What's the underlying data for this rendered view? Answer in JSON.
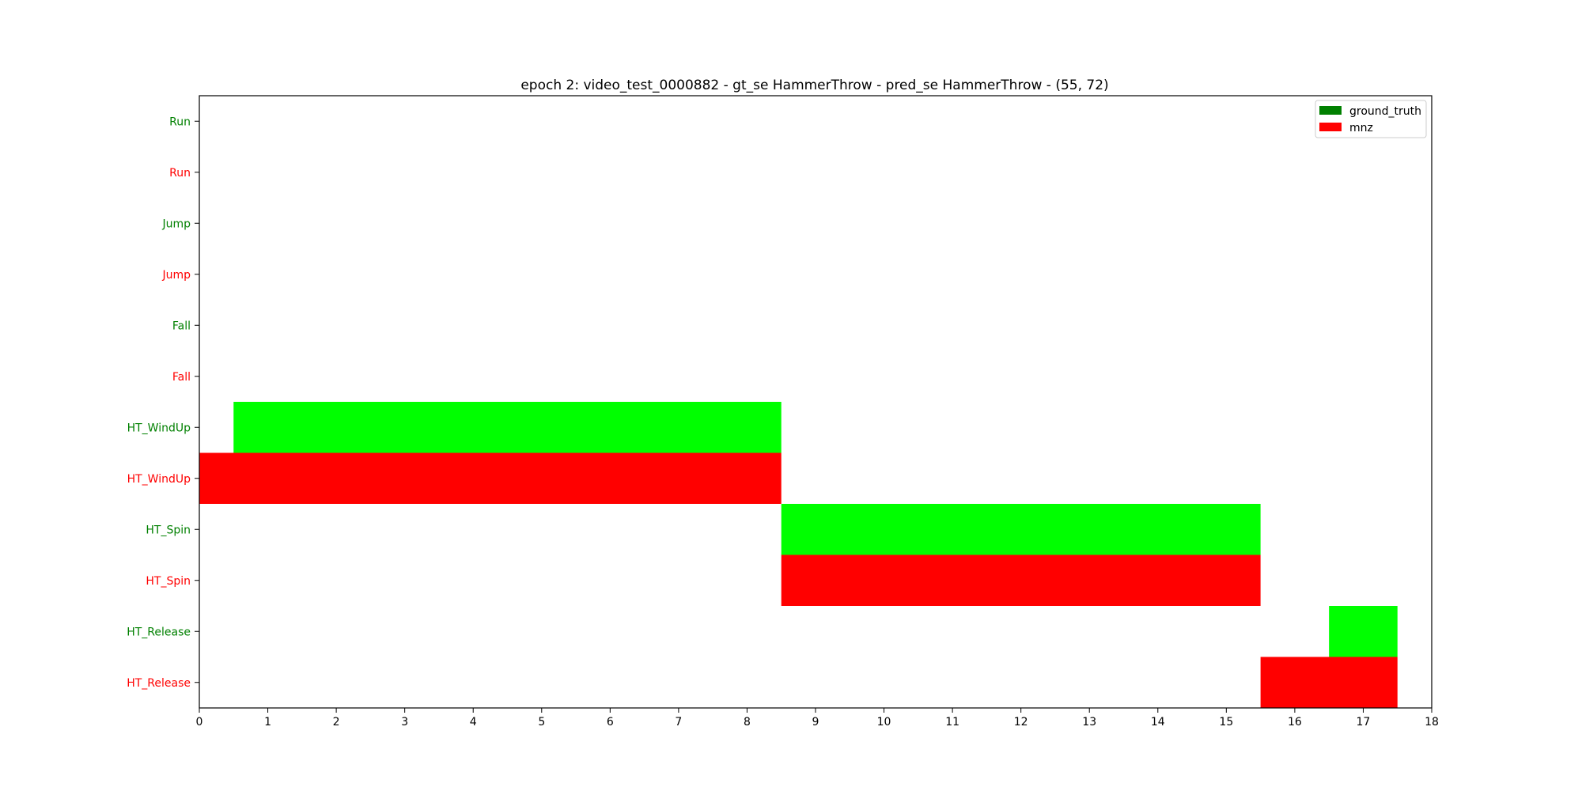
{
  "chart_data": {
    "type": "bar",
    "title": "epoch 2: video_test_0000882 - gt_se HammerThrow - pred_se HammerThrow - (55, 72)",
    "xlabel": "",
    "ylabel": "",
    "xlim": [
      0,
      18
    ],
    "xticks": [
      "0",
      "1",
      "2",
      "3",
      "4",
      "5",
      "6",
      "7",
      "8",
      "9",
      "10",
      "11",
      "12",
      "13",
      "14",
      "15",
      "16",
      "17",
      "18"
    ],
    "grid": false,
    "legend_position": "top-right",
    "legend": [
      {
        "label": "ground_truth",
        "color": "#008000"
      },
      {
        "label": "mnz",
        "color": "#ff0000"
      }
    ],
    "rows": [
      {
        "label": "Run",
        "source": "ground_truth",
        "label_color": "#008000"
      },
      {
        "label": "Run",
        "source": "mnz",
        "label_color": "#ff0000"
      },
      {
        "label": "Jump",
        "source": "ground_truth",
        "label_color": "#008000"
      },
      {
        "label": "Jump",
        "source": "mnz",
        "label_color": "#ff0000"
      },
      {
        "label": "Fall",
        "source": "ground_truth",
        "label_color": "#008000"
      },
      {
        "label": "Fall",
        "source": "mnz",
        "label_color": "#ff0000"
      },
      {
        "label": "HT_WindUp",
        "source": "ground_truth",
        "label_color": "#008000"
      },
      {
        "label": "HT_WindUp",
        "source": "mnz",
        "label_color": "#ff0000"
      },
      {
        "label": "HT_Spin",
        "source": "ground_truth",
        "label_color": "#008000"
      },
      {
        "label": "HT_Spin",
        "source": "mnz",
        "label_color": "#ff0000"
      },
      {
        "label": "HT_Release",
        "source": "ground_truth",
        "label_color": "#008000"
      },
      {
        "label": "HT_Release",
        "source": "mnz",
        "label_color": "#ff0000"
      }
    ],
    "segments": [
      {
        "row": 6,
        "start": 0.5,
        "end": 8.5,
        "color": "#00ff00"
      },
      {
        "row": 7,
        "start": 0,
        "end": 8.5,
        "color": "#ff0000"
      },
      {
        "row": 8,
        "start": 8.5,
        "end": 15.5,
        "color": "#00ff00"
      },
      {
        "row": 9,
        "start": 8.5,
        "end": 15.5,
        "color": "#ff0000"
      },
      {
        "row": 10,
        "start": 16.5,
        "end": 17.5,
        "color": "#00ff00"
      },
      {
        "row": 11,
        "start": 15.5,
        "end": 17.5,
        "color": "#ff0000"
      }
    ]
  }
}
